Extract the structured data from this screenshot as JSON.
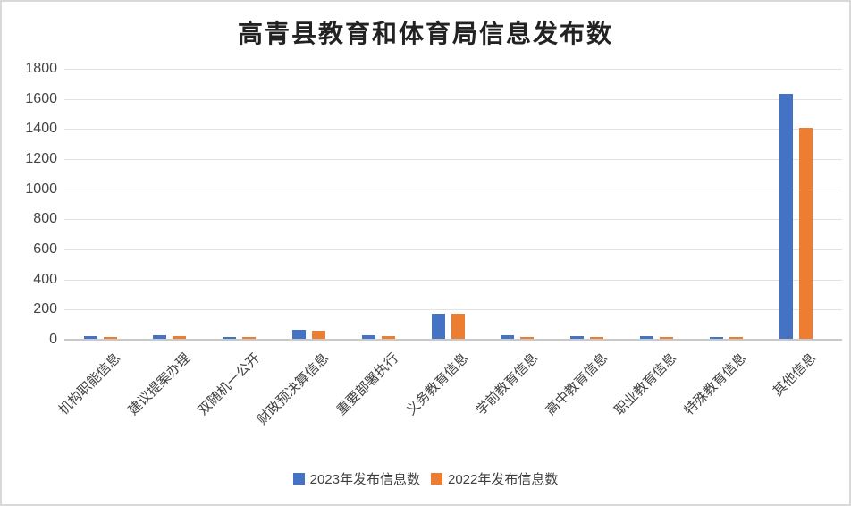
{
  "page": {
    "background": "#FFFFFF",
    "border_color": "#D9D9D9"
  },
  "chart_data": {
    "type": "bar",
    "title": "高青县教育和体育局信息发布数",
    "categories": [
      "机构职能信息",
      "建议提案办理",
      "双随机一公开",
      "财政预决算信息",
      "重要部署执行",
      "义务教育信息",
      "学前教育信息",
      "高中教育信息",
      "职业教育信息",
      "特殊教育信息",
      "其他信息"
    ],
    "series": [
      {
        "name": "2023年发布信息数",
        "color": "#4472C4",
        "values": [
          20,
          22,
          12,
          60,
          22,
          165,
          25,
          15,
          15,
          14,
          1630
        ]
      },
      {
        "name": "2022年发布信息数",
        "color": "#ED7D31",
        "values": [
          12,
          20,
          10,
          55,
          20,
          165,
          12,
          12,
          14,
          14,
          1400
        ]
      }
    ],
    "ylim": [
      0,
      1800
    ],
    "yticks": [
      0,
      200,
      400,
      600,
      800,
      1000,
      1200,
      1400,
      1600,
      1800
    ],
    "grid": true,
    "gridline_color": "#E2E2E2",
    "axis_line_color": "#C9C9C9",
    "tick_label_color": "#444444",
    "title_color": "#222222",
    "x_label_rotation": 45,
    "legend_position": "bottom"
  }
}
